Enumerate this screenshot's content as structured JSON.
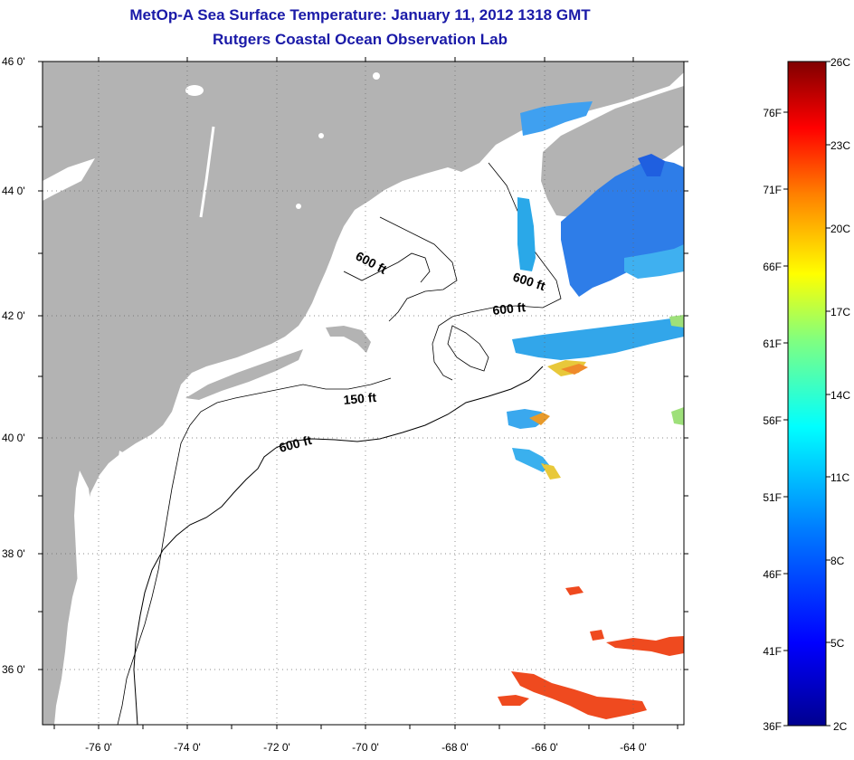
{
  "title": {
    "line1": "MetOp-A Sea Surface Temperature:  January 11, 2012 1318 GMT",
    "line2": "Rutgers Coastal Ocean Observation Lab"
  },
  "colors": {
    "title_text": "#1a1aa8",
    "land": "#b3b3b3",
    "ocean_no_data": "#ffffff"
  },
  "map": {
    "lat_labels": [
      "46 0'",
      "44 0'",
      "42 0'",
      "40 0'",
      "38 0'",
      "36 0'"
    ],
    "lon_labels": [
      "-76 0'",
      "-74 0'",
      "-72 0'",
      "-70 0'",
      "-68 0'",
      "-66 0'",
      "-64 0'"
    ],
    "contour_labels": [
      "600 ft",
      "600 ft",
      "600 ft",
      "150 ft",
      "600 ft"
    ]
  },
  "colorbar": {
    "celsius_labels": [
      "26C",
      "23C",
      "20C",
      "17C",
      "14C",
      "11C",
      "8C",
      "5C",
      "2C"
    ],
    "fahrenheit_labels": [
      "76F",
      "71F",
      "66F",
      "61F",
      "56F",
      "51F",
      "46F",
      "41F",
      "36F"
    ],
    "gradient_stops": [
      "#800000",
      "#ff0000",
      "#ff8000",
      "#ffff00",
      "#80ff80",
      "#00ffff",
      "#0080ff",
      "#0000ff",
      "#00008f"
    ]
  }
}
